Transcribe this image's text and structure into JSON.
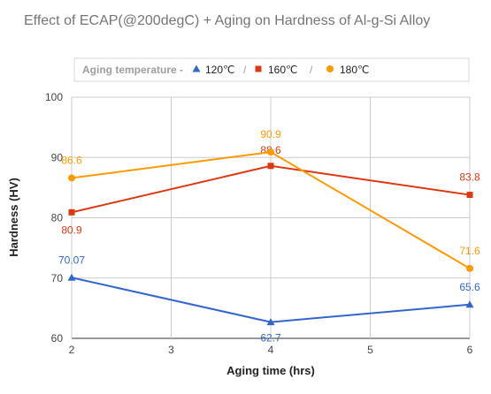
{
  "chart_data": {
    "type": "line",
    "title": "Effect of ECAP(@200degC) + Aging on Hardness of Al-g-Si Alloy",
    "xlabel": "Aging time (hrs)",
    "ylabel": "Hardness (HV)",
    "x_ticks": [
      2,
      3,
      4,
      5,
      6
    ],
    "y_ticks": [
      60,
      70,
      80,
      90,
      100
    ],
    "xlim": [
      2,
      6
    ],
    "ylim": [
      60,
      100
    ],
    "grid": true,
    "legend": {
      "title": "Aging temperature -",
      "separator": "/",
      "position": "top"
    },
    "series": [
      {
        "name": "120℃",
        "color": "#3366cc",
        "marker": "triangle",
        "x": [
          2,
          4,
          6
        ],
        "y": [
          70.07,
          62.7,
          65.6
        ],
        "labels": [
          "70.07",
          "62.7",
          "65.6"
        ]
      },
      {
        "name": "160℃",
        "color": "#dc3912",
        "marker": "square",
        "x": [
          2,
          4,
          6
        ],
        "y": [
          80.9,
          88.6,
          83.8
        ],
        "labels": [
          "80.9",
          "88.6",
          "83.8"
        ]
      },
      {
        "name": "180℃",
        "color": "#ff9900",
        "marker": "circle",
        "x": [
          2,
          4,
          6
        ],
        "y": [
          86.6,
          90.9,
          71.6
        ],
        "labels": [
          "86.6",
          "90.9",
          "71.6"
        ]
      }
    ]
  }
}
